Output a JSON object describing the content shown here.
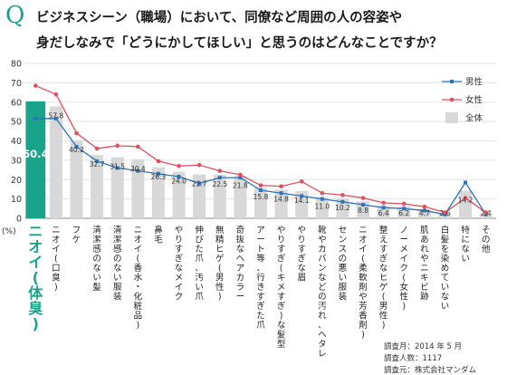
{
  "header": {
    "mark": "Q",
    "title_line1": "ビジネスシーン（職場）において、同僚など周囲の人の容姿や",
    "title_line2": "身だしなみで「どうにかしてほしい」と思うのはどんなことですか？"
  },
  "footer": {
    "line1": "調査月：2014 年 5 月",
    "line2": "調査人数：1117",
    "line3": "調査元：株式会社マンダム"
  },
  "chart_data": {
    "type": "bar",
    "ylabel": "(%)",
    "ylim": [
      0,
      80
    ],
    "yticks": [
      0,
      10,
      20,
      30,
      40,
      50,
      60,
      70,
      80
    ],
    "grid": true,
    "legend_position": "top-right",
    "categories": [
      "ニオイ(体臭)",
      "ニオイ(口臭)",
      "フケ",
      "清潔感のない髪",
      "清潔感のない服装",
      "ニオイ(香水・化粧品)",
      "鼻毛",
      "やりすぎなメイク",
      "伸びた爪、汚い爪",
      "無精ヒゲ(男性)",
      "奇抜なヘアカラー",
      "アート等、行きすぎた爪",
      "やりすぎ(キメすぎ)な髪型",
      "やりすぎな眉",
      "靴やカバンなどの汚れ、ヘタレ",
      "センスの悪い服装",
      "ニオイ(柔軟剤や芳香剤)",
      "整えすぎなヒゲ(男性)",
      "ノーメイク(女性)",
      "肌あれやニキビ跡",
      "白髪を染めていない",
      "特にない",
      "その他"
    ],
    "series": [
      {
        "name": "全体",
        "kind": "bar",
        "values": [
          60.4,
          57.8,
          40.2,
          32.7,
          31.5,
          30.4,
          26.3,
          24.0,
          22.7,
          22.5,
          21.8,
          15.8,
          14.8,
          14.1,
          11.0,
          10.2,
          8.8,
          6.4,
          6.2,
          4.7,
          2.6,
          14.2,
          2.4
        ]
      },
      {
        "name": "男性",
        "kind": "line",
        "values": [
          51.5,
          51.5,
          37.0,
          29.5,
          26.0,
          24.5,
          23.0,
          21.5,
          18.0,
          21.0,
          21.0,
          14.5,
          13.0,
          11.5,
          10.0,
          8.5,
          7.0,
          5.5,
          5.0,
          4.0,
          2.0,
          18.5,
          2.0
        ]
      },
      {
        "name": "女性",
        "kind": "line",
        "values": [
          68.5,
          64.0,
          44.0,
          36.0,
          37.5,
          37.0,
          29.5,
          27.0,
          27.5,
          24.5,
          22.5,
          17.0,
          16.5,
          19.0,
          13.0,
          12.0,
          10.5,
          8.0,
          7.5,
          6.0,
          3.0,
          10.5,
          3.0
        ]
      }
    ],
    "highlight_index": 0,
    "colors": {
      "highlight_bar": "#1aa38b",
      "bar": "#d8d8d8",
      "male": "#2a74b8",
      "female": "#e0505f",
      "grid": "#e3e3e3",
      "highlight_label": "#1aa38b"
    }
  }
}
